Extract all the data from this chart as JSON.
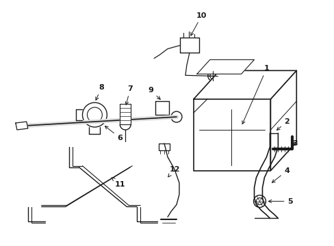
{
  "bg_color": "#ffffff",
  "line_color": "#1a1a1a",
  "lw": 1.0,
  "figsize": [
    4.89,
    3.6
  ],
  "dpi": 100,
  "xlim": [
    0,
    489
  ],
  "ylim": [
    0,
    360
  ]
}
